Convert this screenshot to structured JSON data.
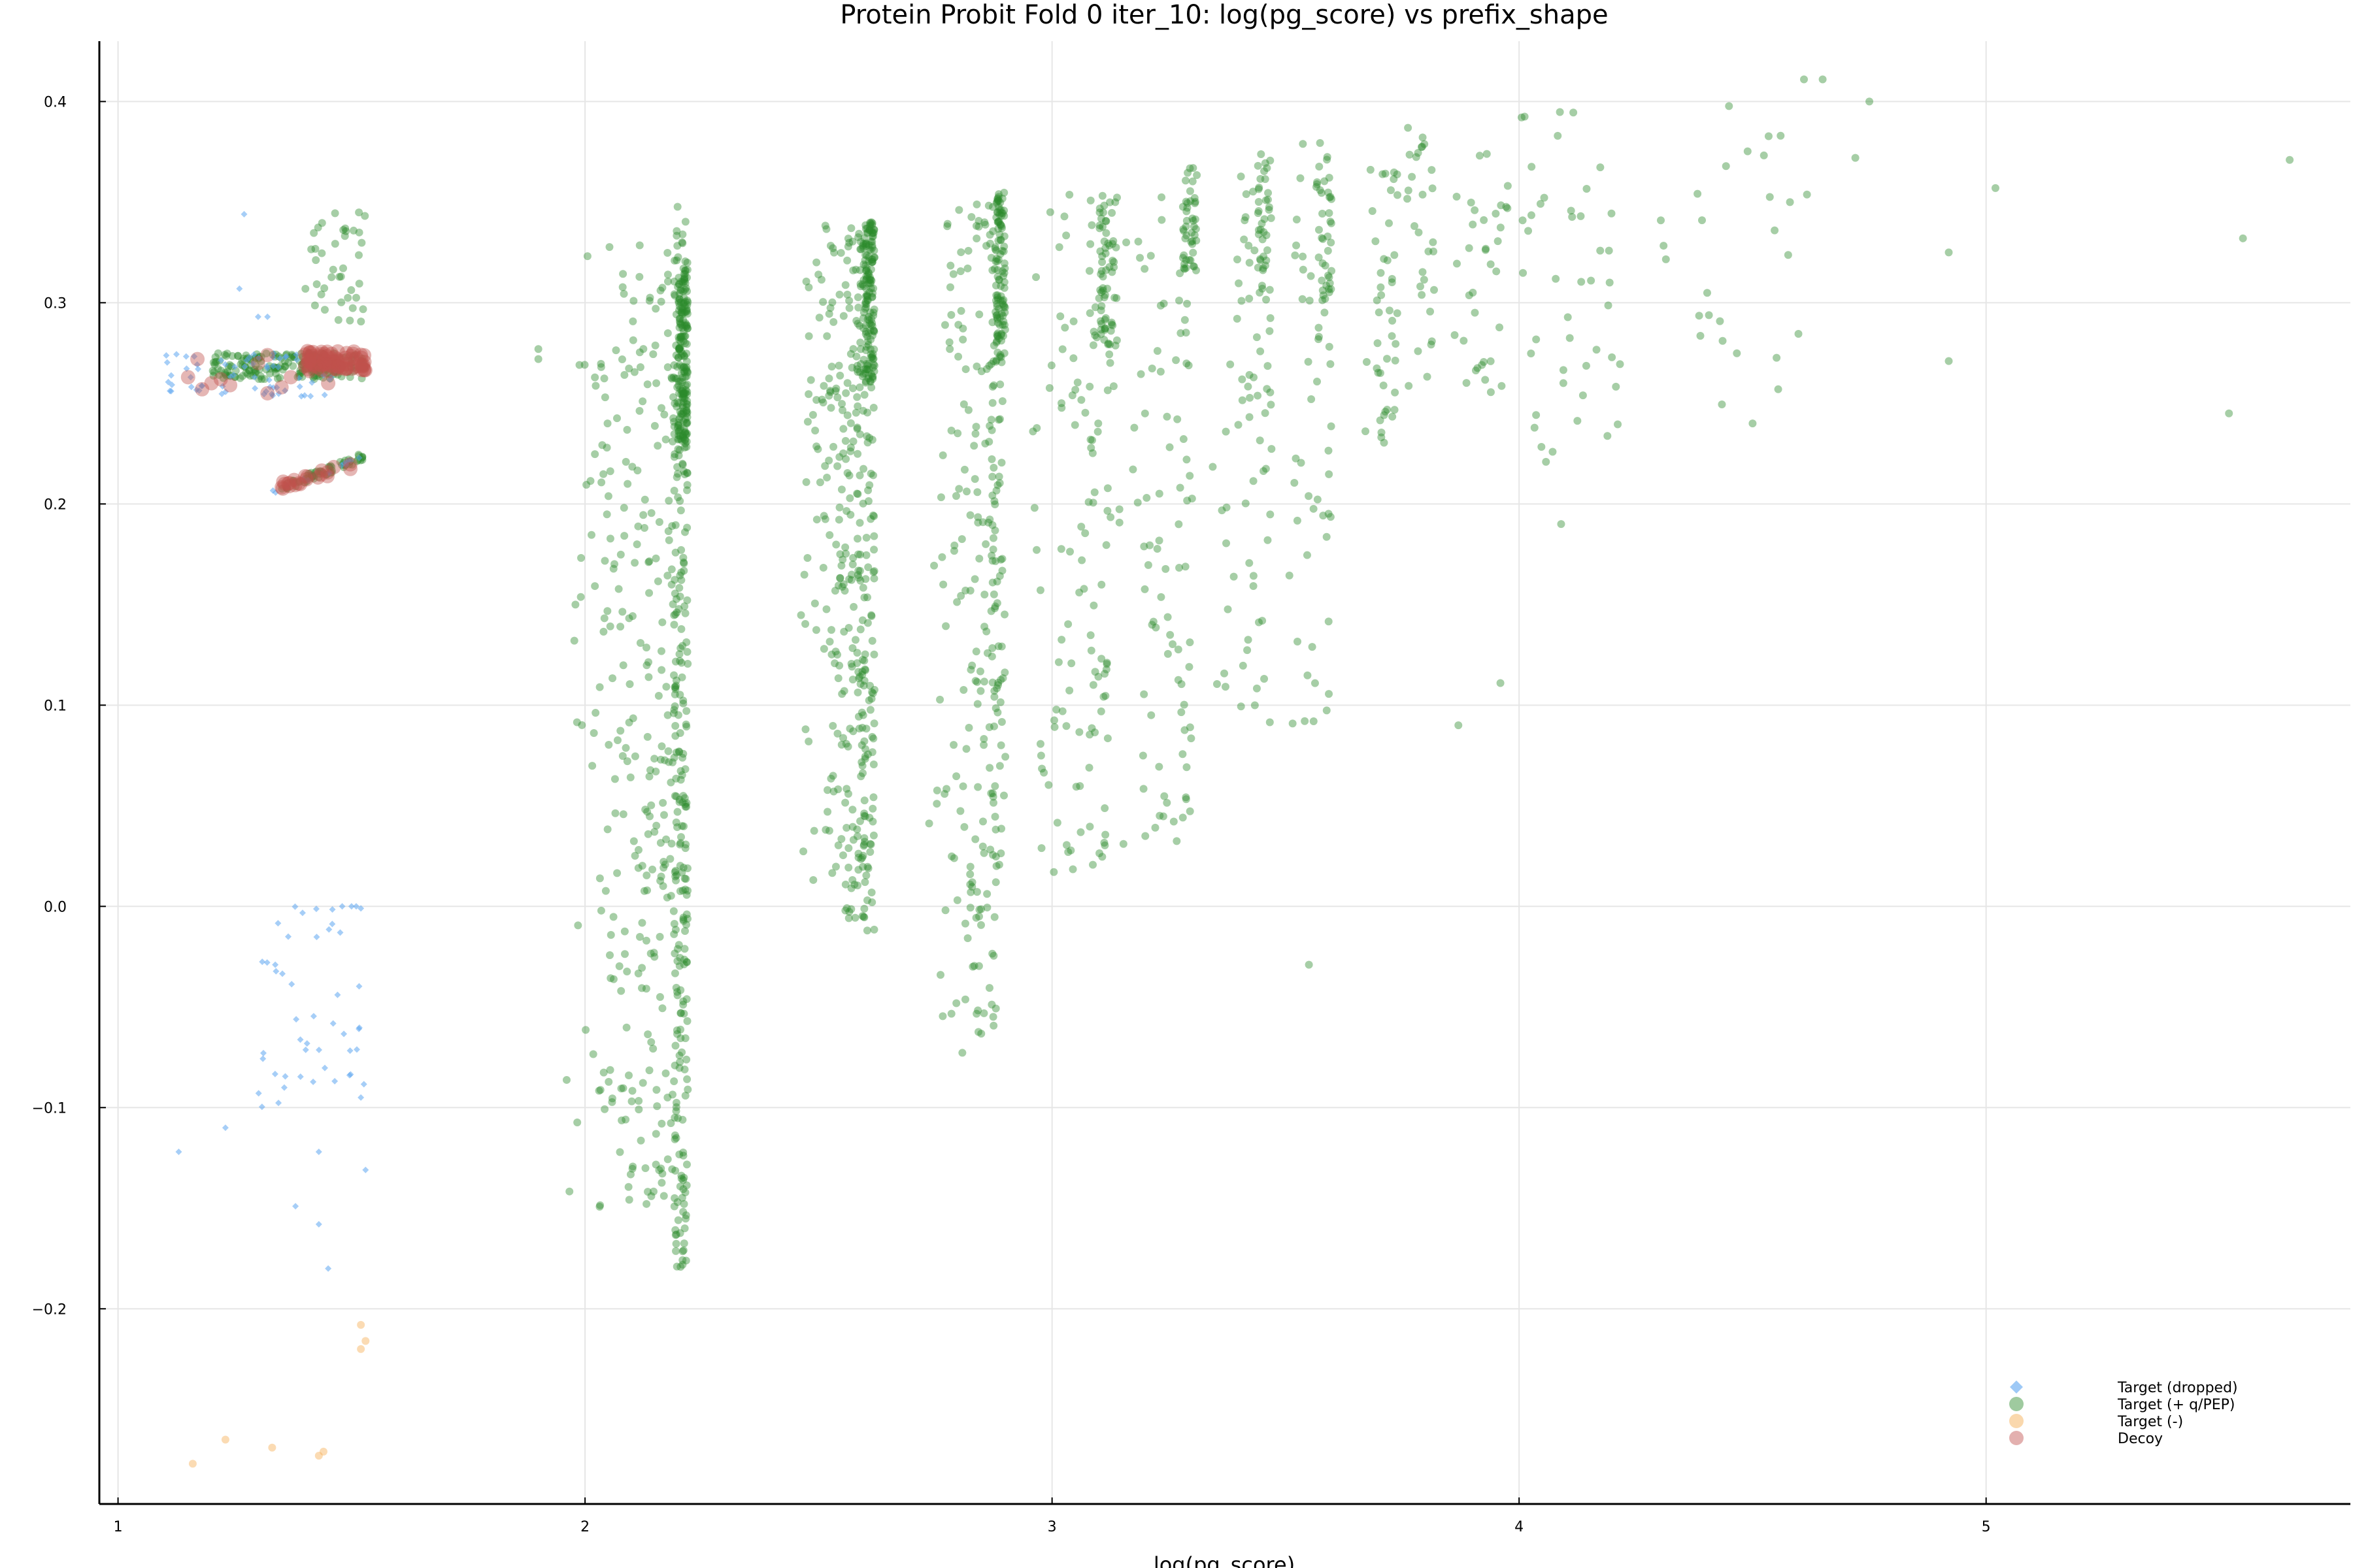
{
  "chart_data": {
    "type": "scatter",
    "title": "Protein Probit Fold 0 iter_10: log(pg_score) vs prefix_shape",
    "xlabel": "log(pg_score)",
    "ylabel": "",
    "xlim": [
      0.96,
      5.78
    ],
    "ylim": [
      -0.297,
      0.43
    ],
    "x_ticks": [
      1,
      2,
      3,
      4,
      5
    ],
    "x_tick_labels": [
      "1",
      "2",
      "3",
      "4",
      "5"
    ],
    "y_ticks": [
      -0.2,
      -0.1,
      0.0,
      0.1,
      0.2,
      0.3,
      0.4
    ],
    "y_tick_labels": [
      "−0.2",
      "−0.1",
      "0.0",
      "0.1",
      "0.2",
      "0.3",
      "0.4"
    ],
    "grid": true,
    "legend_position": "bottom-right",
    "series": [
      {
        "name": "Target (dropped)",
        "marker": "diamond",
        "color": "#5da5f0",
        "clusters": [
          {
            "x": [
              1.1,
              1.48
            ],
            "y": [
              0.253,
              0.275
            ],
            "n": 70,
            "shape": "box"
          },
          {
            "x": [
              1.33,
              1.52
            ],
            "y": [
              0.206,
              0.222
            ],
            "n": 14,
            "shape": "line"
          },
          {
            "x": [
              1.3,
              1.53
            ],
            "y": [
              -0.1,
              0.0
            ],
            "n": 45,
            "shape": "box"
          }
        ],
        "points": [
          [
            1.27,
            0.344
          ],
          [
            1.26,
            0.307
          ],
          [
            1.3,
            0.293
          ],
          [
            1.32,
            0.293
          ],
          [
            1.13,
            -0.122
          ],
          [
            1.23,
            -0.11
          ],
          [
            1.43,
            -0.122
          ],
          [
            1.38,
            -0.149
          ],
          [
            1.43,
            -0.158
          ],
          [
            1.45,
            -0.18
          ],
          [
            1.53,
            -0.131
          ],
          [
            1.52,
            -0.095
          ],
          [
            1.48,
            0.0
          ],
          [
            1.5,
            0.0
          ],
          [
            1.51,
            0.0
          ],
          [
            1.52,
            -0.001
          ]
        ]
      },
      {
        "name": "Target (+ q/PEP)",
        "marker": "circle",
        "color": "#2a8a2a",
        "clusters": [
          {
            "x": [
              1.2,
              1.53
            ],
            "y": [
              0.262,
              0.275
            ],
            "n": 200,
            "shape": "box"
          },
          {
            "x": [
              1.35,
              1.53
            ],
            "y": [
              0.208,
              0.224
            ],
            "n": 60,
            "shape": "line"
          },
          {
            "x": [
              1.4,
              1.53
            ],
            "y": [
              0.29,
              0.345
            ],
            "n": 40,
            "shape": "box"
          },
          {
            "x": [
              2.2,
              2.22
            ],
            "y": [
              0.23,
              0.32
            ],
            "n": 160,
            "shape": "box"
          },
          {
            "x": [
              2.19,
              2.22
            ],
            "y": [
              -0.18,
              0.35
            ],
            "n": 260,
            "shape": "box"
          },
          {
            "x": [
              1.95,
              2.2
            ],
            "y": [
              -0.15,
              0.33
            ],
            "n": 300,
            "shape": "triangle"
          },
          {
            "x": [
              2.6,
              2.62
            ],
            "y": [
              0.26,
              0.34
            ],
            "n": 120,
            "shape": "box"
          },
          {
            "x": [
              2.58,
              2.62
            ],
            "y": [
              -0.013,
              0.34
            ],
            "n": 140,
            "shape": "box"
          },
          {
            "x": [
              2.45,
              2.6
            ],
            "y": [
              -0.007,
              0.34
            ],
            "n": 240,
            "shape": "triangle"
          },
          {
            "x": [
              2.88,
              2.9
            ],
            "y": [
              0.27,
              0.355
            ],
            "n": 90,
            "shape": "box"
          },
          {
            "x": [
              2.87,
              2.9
            ],
            "y": [
              0.01,
              0.355
            ],
            "n": 80,
            "shape": "box"
          },
          {
            "x": [
              2.73,
              2.88
            ],
            "y": [
              -0.075,
              0.35
            ],
            "n": 180,
            "shape": "triangle"
          },
          {
            "x": [
              3.1,
              3.14
            ],
            "y": [
              0.27,
              0.358
            ],
            "n": 60,
            "shape": "box"
          },
          {
            "x": [
              2.95,
              3.12
            ],
            "y": [
              0.016,
              0.355
            ],
            "n": 120,
            "shape": "triangle"
          },
          {
            "x": [
              3.28,
              3.31
            ],
            "y": [
              0.31,
              0.367
            ],
            "n": 45,
            "shape": "box"
          },
          {
            "x": [
              3.12,
              3.3
            ],
            "y": [
              0.03,
              0.36
            ],
            "n": 90,
            "shape": "triangle"
          },
          {
            "x": [
              3.44,
              3.47
            ],
            "y": [
              0.3,
              0.375
            ],
            "n": 35,
            "shape": "box"
          },
          {
            "x": [
              3.33,
              3.47
            ],
            "y": [
              0.09,
              0.37
            ],
            "n": 70,
            "shape": "triangle"
          },
          {
            "x": [
              3.57,
              3.6
            ],
            "y": [
              0.3,
              0.378
            ],
            "n": 30,
            "shape": "box"
          },
          {
            "x": [
              3.5,
              3.6
            ],
            "y": [
              0.09,
              0.38
            ],
            "n": 55,
            "shape": "triangle"
          },
          {
            "x": [
              3.66,
              3.74
            ],
            "y": [
              0.23,
              0.37
            ],
            "n": 45,
            "shape": "triangle"
          },
          {
            "x": [
              3.76,
              3.82
            ],
            "y": [
              0.255,
              0.387
            ],
            "n": 30,
            "shape": "box"
          },
          {
            "x": [
              3.86,
              3.98
            ],
            "y": [
              0.255,
              0.38
            ],
            "n": 35,
            "shape": "box"
          },
          {
            "x": [
              4.0,
              4.22
            ],
            "y": [
              0.22,
              0.395
            ],
            "n": 45,
            "shape": "box"
          },
          {
            "x": [
              4.3,
              4.62
            ],
            "y": [
              0.24,
              0.41
            ],
            "n": 25,
            "shape": "box"
          }
        ],
        "points": [
          [
            1.9,
            0.272
          ],
          [
            1.9,
            0.277
          ],
          [
            3.55,
            -0.029
          ],
          [
            3.56,
            0.092
          ],
          [
            3.87,
            0.09
          ],
          [
            3.96,
            0.111
          ],
          [
            4.09,
            0.19
          ],
          [
            4.5,
            0.24
          ],
          [
            4.65,
            0.411
          ],
          [
            4.75,
            0.4
          ],
          [
            4.72,
            0.372
          ],
          [
            4.92,
            0.325
          ],
          [
            4.92,
            0.271
          ],
          [
            5.02,
            0.357
          ],
          [
            5.52,
            0.245
          ],
          [
            5.55,
            0.332
          ],
          [
            5.65,
            0.371
          ],
          [
            4.61,
            0.411
          ],
          [
            4.56,
            0.383
          ],
          [
            4.58,
            0.35
          ]
        ]
      },
      {
        "name": "Target (-)",
        "marker": "circle",
        "color": "#f5a94a",
        "points": [
          [
            1.16,
            -0.277
          ],
          [
            1.23,
            -0.265
          ],
          [
            1.33,
            -0.269
          ],
          [
            1.43,
            -0.273
          ],
          [
            1.44,
            -0.271
          ],
          [
            1.52,
            -0.208
          ],
          [
            1.53,
            -0.216
          ],
          [
            1.52,
            -0.22
          ]
        ]
      },
      {
        "name": "Decoy",
        "marker": "circle",
        "color": "#c0504d",
        "clusters": [
          {
            "x": [
              1.4,
              1.53
            ],
            "y": [
              0.266,
              0.276
            ],
            "n": 80,
            "shape": "box"
          },
          {
            "x": [
              1.35,
              1.5
            ],
            "y": [
              0.209,
              0.219
            ],
            "n": 22,
            "shape": "line"
          }
        ],
        "points": [
          [
            1.15,
            0.263
          ],
          [
            1.17,
            0.272
          ],
          [
            1.18,
            0.257
          ],
          [
            1.2,
            0.26
          ],
          [
            1.22,
            0.262
          ],
          [
            1.24,
            0.259
          ],
          [
            1.3,
            0.27
          ],
          [
            1.32,
            0.274
          ],
          [
            1.32,
            0.255
          ],
          [
            1.35,
            0.258
          ],
          [
            1.37,
            0.263
          ],
          [
            1.45,
            0.26
          ]
        ]
      }
    ]
  }
}
